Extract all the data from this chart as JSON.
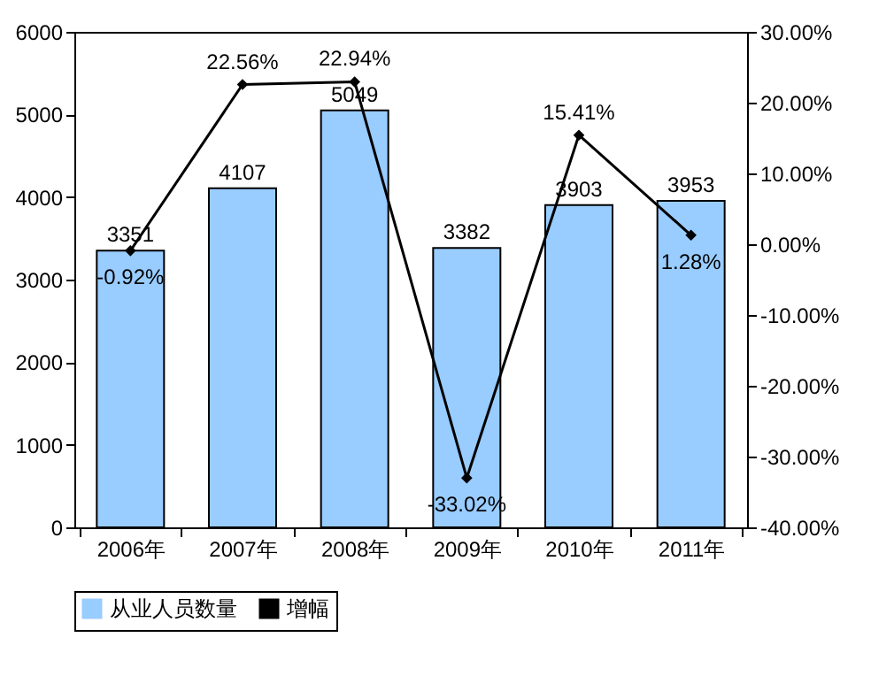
{
  "chart_data": {
    "type": "bar",
    "categories": [
      "2006年",
      "2007年",
      "2008年",
      "2009年",
      "2010年",
      "2011年"
    ],
    "series": [
      {
        "name": "从业人员数量",
        "color": "#99ccff",
        "values": [
          3351,
          4107,
          5049,
          3382,
          3903,
          3953
        ],
        "value_labels": [
          "3351",
          "4107",
          "5049",
          "3382",
          "3903",
          "3953"
        ]
      },
      {
        "name": "增幅",
        "type": "line",
        "axis": "y2",
        "color": "#000000",
        "values": [
          -0.92,
          22.56,
          22.94,
          -33.02,
          15.41,
          1.28
        ],
        "value_labels": [
          "-0.92%",
          "22.56%",
          "22.94%",
          "-33.02%",
          "15.41%",
          "1.28%"
        ]
      }
    ],
    "ylim": [
      0,
      6000
    ],
    "yticks": [
      0,
      1000,
      2000,
      3000,
      4000,
      5000,
      6000
    ],
    "y2lim": [
      -40,
      30
    ],
    "y2ticks": [
      {
        "value": -40,
        "label": "-40.00%"
      },
      {
        "value": -30,
        "label": "-30.00%"
      },
      {
        "value": -20,
        "label": "-20.00%"
      },
      {
        "value": -10,
        "label": "-10.00%"
      },
      {
        "value": 0,
        "label": "0.00%"
      },
      {
        "value": 10,
        "label": "10.00%"
      },
      {
        "value": 20,
        "label": "20.00%"
      },
      {
        "value": 30,
        "label": "30.00%"
      }
    ],
    "legend": "bottom",
    "marker": "diamond",
    "line_style": "solid",
    "grid": false
  }
}
